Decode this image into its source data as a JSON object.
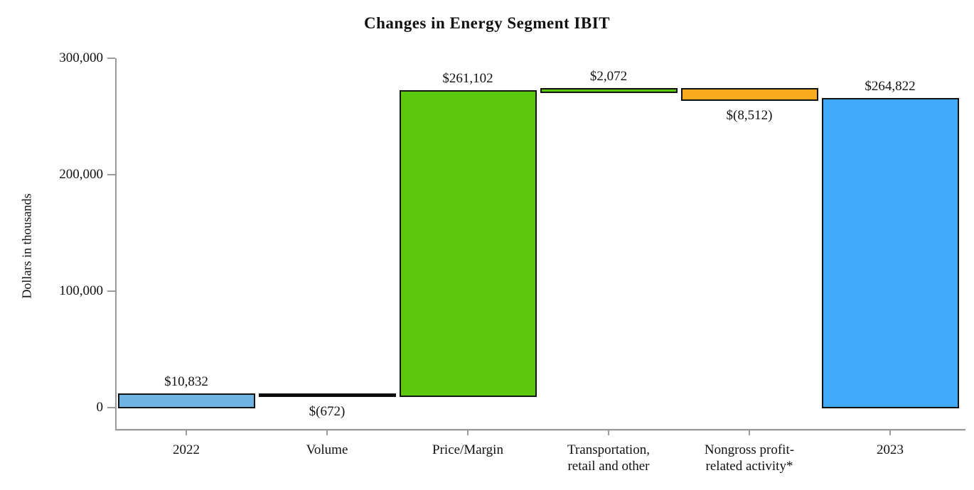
{
  "title": "Changes in Energy Segment IBIT",
  "chart_data": {
    "type": "bar",
    "subtype": "waterfall",
    "title": "Changes in Energy Segment IBIT",
    "xlabel": "",
    "ylabel": "Dollars in thousands",
    "ylim": [
      0,
      300000
    ],
    "grid": "off",
    "legend": "none",
    "yticks": [
      {
        "value": 0,
        "label": "0"
      },
      {
        "value": 100000,
        "label": "100,000"
      },
      {
        "value": 200000,
        "label": "200,000"
      },
      {
        "value": 300000,
        "label": "300,000"
      }
    ],
    "categories": [
      "2022",
      "Volume",
      "Price/Margin",
      "Transportation, retail and other",
      "Nongross profit-related activity*",
      "2023"
    ],
    "bars": [
      {
        "id": "2022",
        "label_lines": [
          "2022"
        ],
        "value": 10832,
        "value_display": "$10,832",
        "start": 0,
        "end": 10832,
        "fill": "#6FB3E3",
        "label_position": "above"
      },
      {
        "id": "volume",
        "label_lines": [
          "Volume"
        ],
        "value": -672,
        "value_display": "$(672)",
        "start": 10160,
        "end": 10832,
        "fill": "#000000",
        "label_position": "below"
      },
      {
        "id": "price-margin",
        "label_lines": [
          "Price/Margin"
        ],
        "value": 261102,
        "value_display": "$261,102",
        "start": 10160,
        "end": 271262,
        "fill": "#5BC80D",
        "label_position": "above"
      },
      {
        "id": "transportation-retail-other",
        "label_lines": [
          "Transportation,",
          "retail and other"
        ],
        "value": 2072,
        "value_display": "$2,072",
        "start": 271262,
        "end": 273334,
        "fill": "#5BC80D",
        "label_position": "above"
      },
      {
        "id": "nongross-profit-related-activity",
        "label_lines": [
          "Nongross profit-",
          "related activity*"
        ],
        "value": -8512,
        "value_display": "$(8,512)",
        "start": 264822,
        "end": 273334,
        "fill": "#FAAB1E",
        "label_position": "below"
      },
      {
        "id": "2023",
        "label_lines": [
          "2023"
        ],
        "value": 264822,
        "value_display": "$264,822",
        "start": 0,
        "end": 264822,
        "fill": "#41A9FA",
        "label_position": "above"
      }
    ],
    "colors": {
      "bar_border": "#111111",
      "axis": "#9B9B9B",
      "year_2022_bar": "#6FB3E3",
      "year_2023_bar": "#41A9FA",
      "increase": "#5BC80D",
      "decrease": "#FAAB1E",
      "tiny_decrease": "#000000"
    }
  }
}
